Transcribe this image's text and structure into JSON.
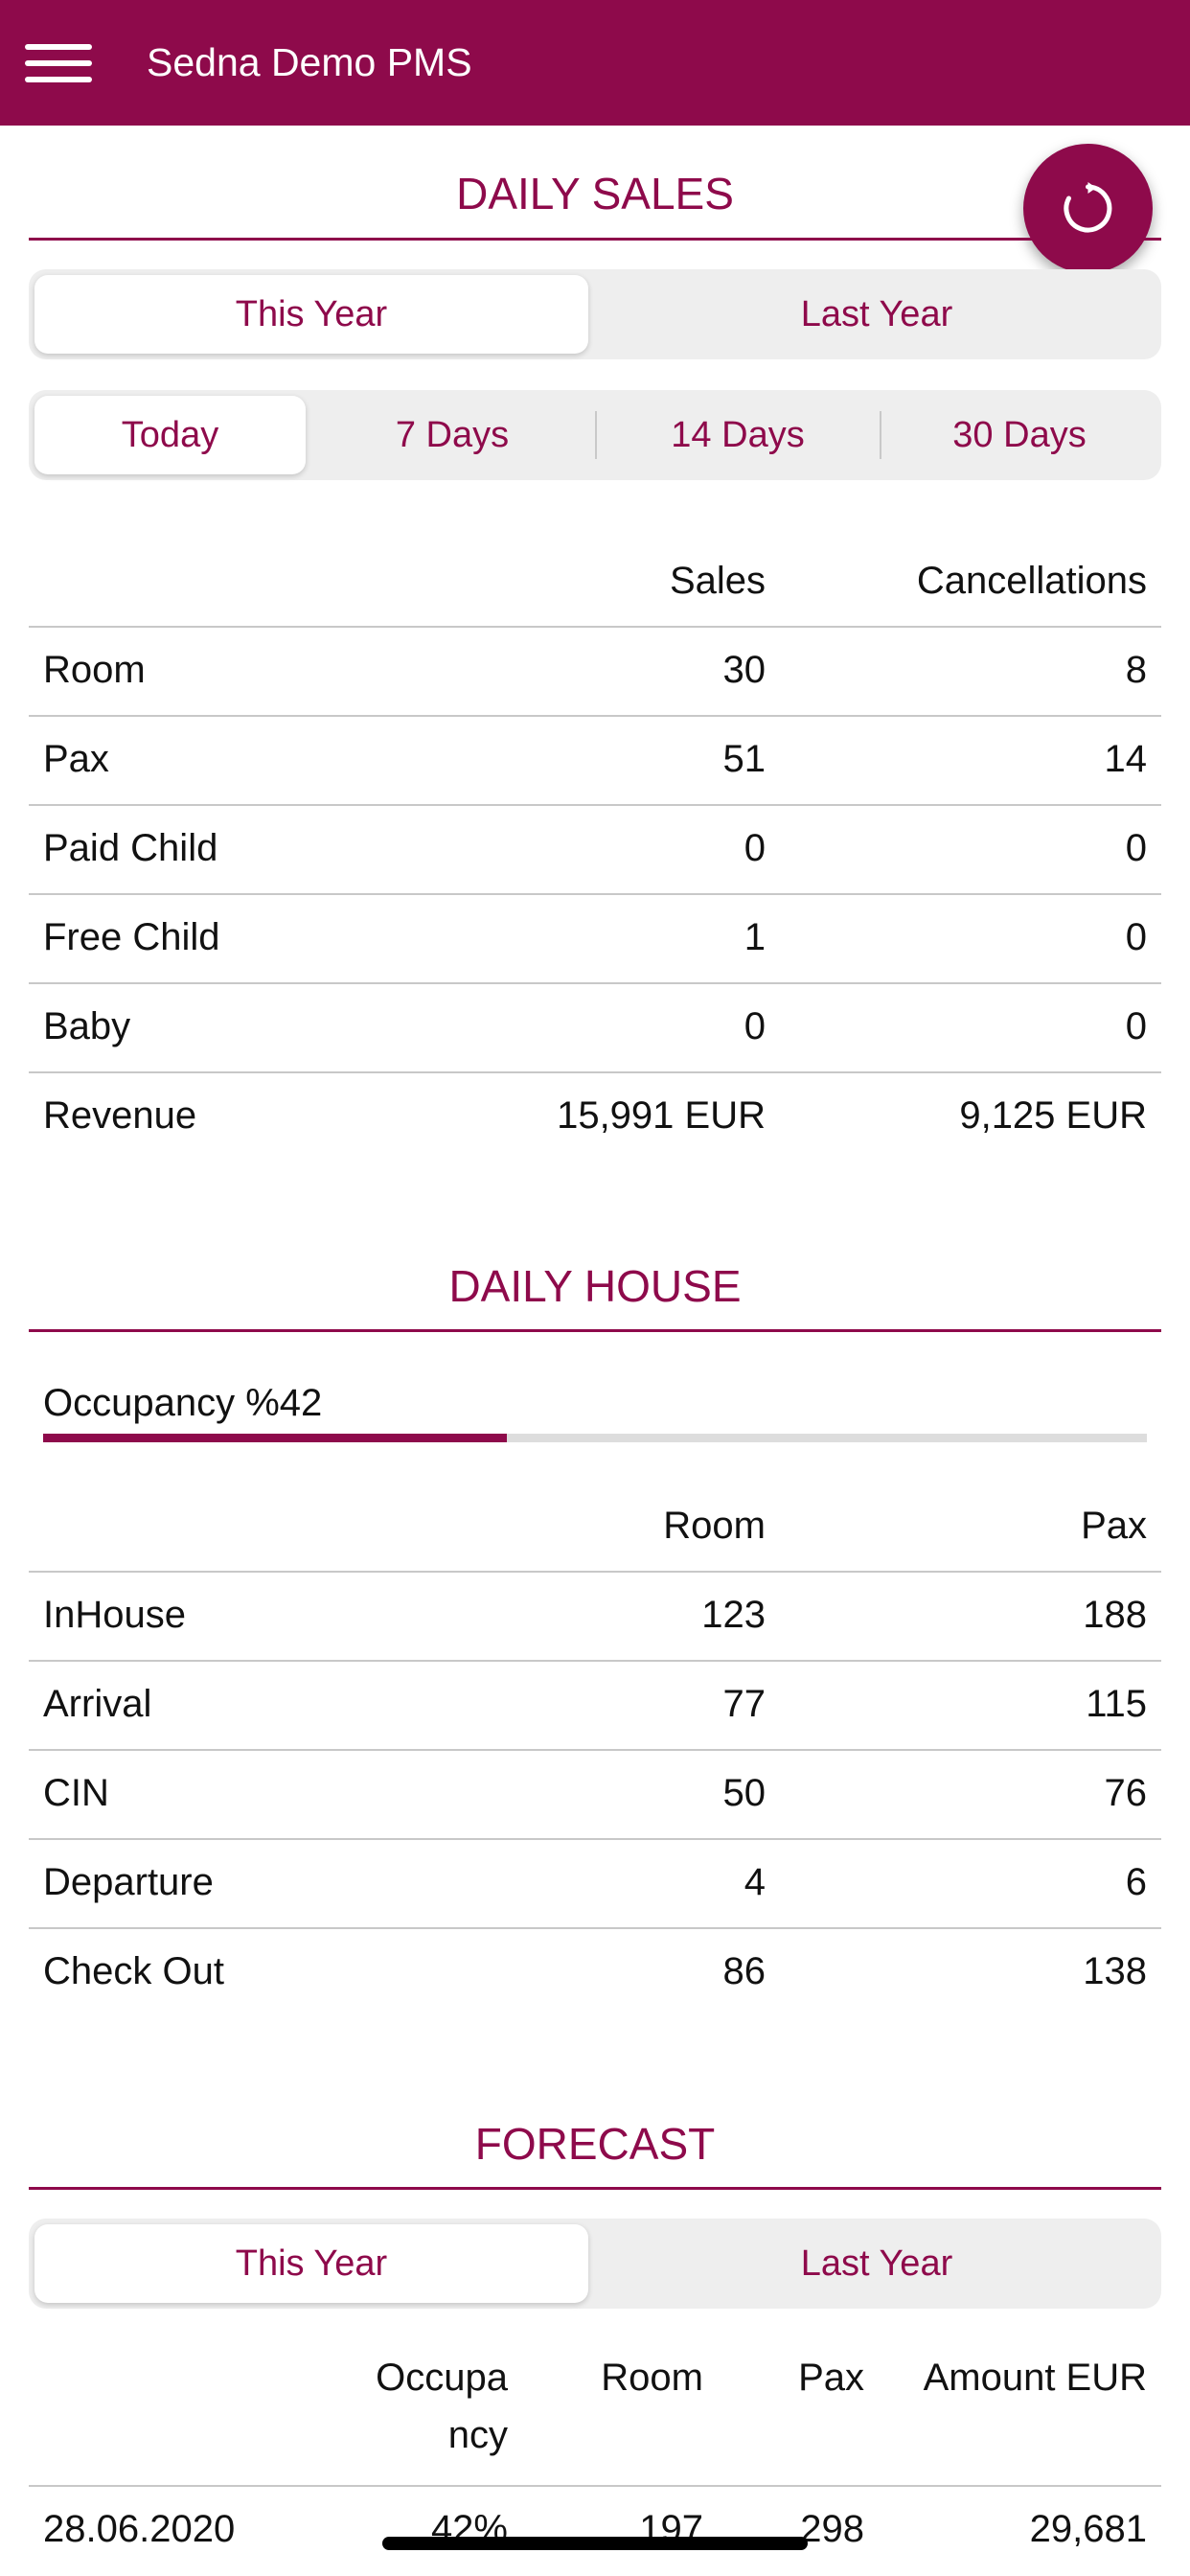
{
  "header": {
    "title": "Sedna Demo PMS",
    "menu_icon": "hamburger-menu-icon"
  },
  "refresh_button": {
    "icon": "refresh-icon"
  },
  "daily_sales": {
    "title": "DAILY SALES",
    "year_tabs": [
      "This Year",
      "Last Year"
    ],
    "active_year_tab": "This Year",
    "period_tabs": [
      "Today",
      "7 Days",
      "14 Days",
      "30 Days"
    ],
    "active_period_tab": "Today",
    "columns": [
      "Sales",
      "Cancellations"
    ],
    "rows": [
      {
        "label": "Room",
        "sales": "30",
        "cancellations": "8"
      },
      {
        "label": "Pax",
        "sales": "51",
        "cancellations": "14"
      },
      {
        "label": "Paid Child",
        "sales": "0",
        "cancellations": "0"
      },
      {
        "label": "Free Child",
        "sales": "1",
        "cancellations": "0"
      },
      {
        "label": "Baby",
        "sales": "0",
        "cancellations": "0"
      },
      {
        "label": "Revenue",
        "sales": "15,991 EUR",
        "cancellations": "9,125 EUR"
      }
    ]
  },
  "daily_house": {
    "title": "DAILY HOUSE",
    "occupancy_label": "Occupancy %42",
    "occupancy_percent": 42,
    "columns": [
      "Room",
      "Pax"
    ],
    "rows": [
      {
        "label": "InHouse",
        "room": "123",
        "pax": "188"
      },
      {
        "label": "Arrival",
        "room": "77",
        "pax": "115"
      },
      {
        "label": "CIN",
        "room": "50",
        "pax": "76"
      },
      {
        "label": "Departure",
        "room": "4",
        "pax": "6"
      },
      {
        "label": "Check Out",
        "room": "86",
        "pax": "138"
      }
    ]
  },
  "forecast": {
    "title": "FORECAST",
    "year_tabs": [
      "This Year",
      "Last Year"
    ],
    "active_year_tab": "This Year",
    "columns": {
      "occupancy_line1": "Occupa",
      "occupancy_line2": "ncy",
      "room": "Room",
      "pax": "Pax",
      "amount": "Amount EUR"
    },
    "rows": [
      {
        "date": "28.06.2020",
        "occupancy": "42%",
        "room": "197",
        "pax": "298",
        "amount": "29,681"
      }
    ]
  },
  "colors": {
    "brand": "#8e0a4b",
    "segment_bg": "#eeeeee",
    "divider": "#c8c8c8"
  }
}
